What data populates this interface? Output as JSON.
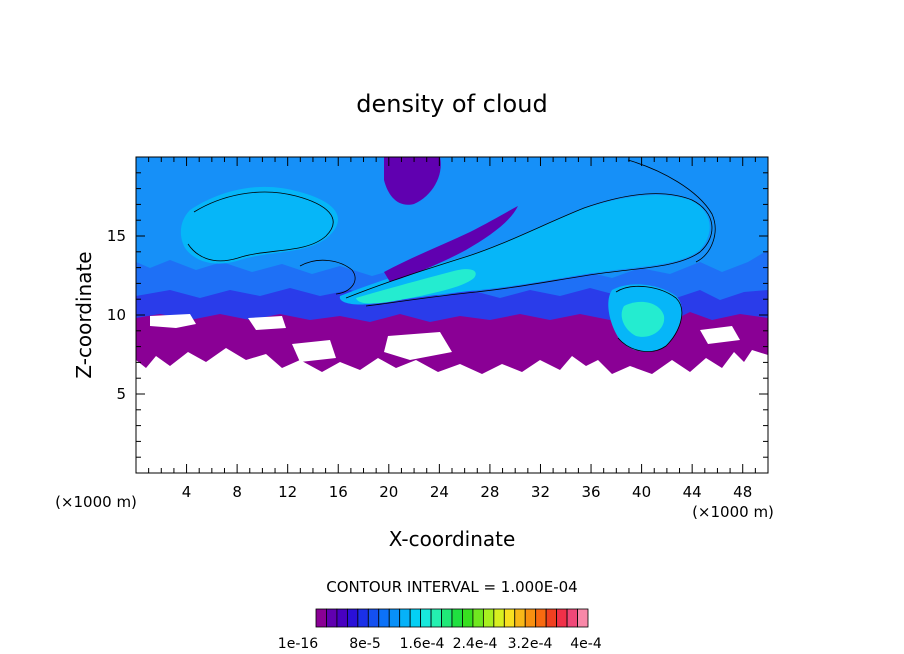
{
  "chart_data": {
    "type": "heatmap",
    "title": "density of cloud",
    "xlabel": "X-coordinate",
    "ylabel": "Z-coordinate",
    "x_unit_left": "(×1000 m)",
    "x_unit_right": "(×1000 m)",
    "xlim": [
      0,
      50
    ],
    "ylim": [
      0,
      20
    ],
    "xticks": [
      4,
      8,
      12,
      16,
      20,
      24,
      28,
      32,
      36,
      40,
      44,
      48
    ],
    "yticks": [
      5,
      10,
      15
    ],
    "contour_interval_label": "CONTOUR INTERVAL = 1.000E-04",
    "colorbar_labels": [
      "1e-16",
      "8e-5",
      "1.6e-4",
      "2.4e-4",
      "3.2e-4",
      "4e-4"
    ],
    "colorbar_colors": [
      "#8a0095",
      "#6000b0",
      "#4800c0",
      "#2a10d8",
      "#1a30e8",
      "#1450f0",
      "#0c72f8",
      "#0890f8",
      "#06b2f8",
      "#04d0f4",
      "#18e8dc",
      "#24f0b0",
      "#20e878",
      "#20e040",
      "#38e020",
      "#70e820",
      "#a8f020",
      "#d8f020",
      "#f8e020",
      "#f8b818",
      "#f89010",
      "#f86a10",
      "#f04020",
      "#f03048",
      "#f04878",
      "#f888a8"
    ],
    "cloud_layer": {
      "base_km_range": [
        6.5,
        10.5
      ],
      "top_km_range": [
        15,
        20
      ],
      "dominant_values": "1e-16 to 1.6e-4",
      "peak_region": "x 18–30 km, z 12–14 km"
    }
  }
}
